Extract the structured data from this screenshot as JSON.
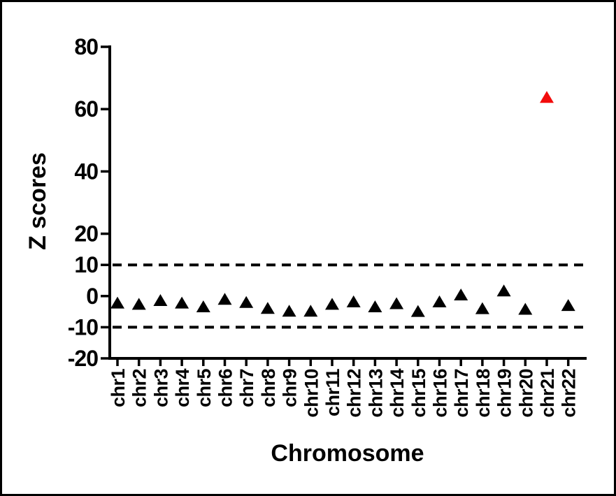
{
  "figure": {
    "background": "#ffffff",
    "frame_color": "#000000"
  },
  "chart_data": {
    "type": "scatter",
    "title": "",
    "xlabel": "Chromosome",
    "ylabel": "Z scores",
    "marker": "triangle",
    "categories": [
      "chr1",
      "chr2",
      "chr3",
      "chr4",
      "chr5",
      "chr6",
      "chr7",
      "chr8",
      "chr9",
      "chr10",
      "chr11",
      "chr12",
      "chr13",
      "chr14",
      "chr15",
      "chr16",
      "chr17",
      "chr18",
      "chr19",
      "chr20",
      "chr21",
      "chr22"
    ],
    "values": [
      -2.2,
      -2.6,
      -1.4,
      -2.2,
      -3.4,
      -1.0,
      -2.0,
      -3.9,
      -4.8,
      -4.8,
      -2.6,
      -1.8,
      -3.4,
      -2.4,
      -4.9,
      -1.8,
      0.4,
      -4.0,
      1.7,
      -4.2,
      63.8,
      -3.0
    ],
    "point_color": "#000000",
    "highlight": {
      "category": "chr21",
      "color": "#f20c0c"
    },
    "ylim": [
      -20,
      80
    ],
    "yticks": [
      80,
      60,
      40,
      20,
      10,
      0,
      -10,
      -20
    ],
    "reference_lines": [
      {
        "y": 10,
        "style": "dashed",
        "color": "#000000"
      },
      {
        "y": -10,
        "style": "dashed",
        "color": "#000000"
      }
    ],
    "grid": false,
    "legend": "none",
    "axis_color": "#000000"
  }
}
